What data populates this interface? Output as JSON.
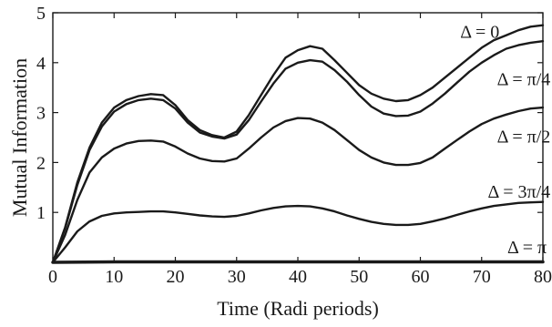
{
  "chart_data": {
    "type": "line",
    "title": "",
    "xlabel": "Time (Radi periods)",
    "ylabel": "Mutual Information",
    "xlim": [
      0,
      80
    ],
    "ylim": [
      0,
      5
    ],
    "xticks": [
      0,
      10,
      20,
      30,
      40,
      50,
      60,
      70,
      80
    ],
    "yticks": [
      1,
      2,
      3,
      4,
      5
    ],
    "grid": false,
    "legend": "none",
    "line_color": "#1a1a1a",
    "series": [
      {
        "name": "Δ = 0",
        "points": [
          [
            0,
            0
          ],
          [
            2,
            0.7
          ],
          [
            4,
            1.6
          ],
          [
            6,
            2.3
          ],
          [
            8,
            2.8
          ],
          [
            10,
            3.1
          ],
          [
            12,
            3.25
          ],
          [
            14,
            3.33
          ],
          [
            16,
            3.37
          ],
          [
            18,
            3.35
          ],
          [
            20,
            3.15
          ],
          [
            22,
            2.85
          ],
          [
            24,
            2.65
          ],
          [
            26,
            2.55
          ],
          [
            28,
            2.5
          ],
          [
            30,
            2.62
          ],
          [
            32,
            2.95
          ],
          [
            34,
            3.35
          ],
          [
            36,
            3.75
          ],
          [
            38,
            4.1
          ],
          [
            40,
            4.25
          ],
          [
            42,
            4.33
          ],
          [
            44,
            4.28
          ],
          [
            46,
            4.05
          ],
          [
            48,
            3.8
          ],
          [
            50,
            3.55
          ],
          [
            52,
            3.38
          ],
          [
            54,
            3.28
          ],
          [
            56,
            3.23
          ],
          [
            58,
            3.25
          ],
          [
            60,
            3.35
          ],
          [
            62,
            3.5
          ],
          [
            64,
            3.7
          ],
          [
            66,
            3.9
          ],
          [
            68,
            4.1
          ],
          [
            70,
            4.3
          ],
          [
            72,
            4.45
          ],
          [
            74,
            4.55
          ],
          [
            76,
            4.65
          ],
          [
            78,
            4.72
          ],
          [
            80,
            4.75
          ]
        ]
      },
      {
        "name": "Δ = π/4",
        "points": [
          [
            0,
            0
          ],
          [
            2,
            0.68
          ],
          [
            4,
            1.55
          ],
          [
            6,
            2.25
          ],
          [
            8,
            2.72
          ],
          [
            10,
            3.02
          ],
          [
            12,
            3.17
          ],
          [
            14,
            3.25
          ],
          [
            16,
            3.28
          ],
          [
            18,
            3.25
          ],
          [
            20,
            3.08
          ],
          [
            22,
            2.8
          ],
          [
            24,
            2.6
          ],
          [
            26,
            2.52
          ],
          [
            28,
            2.48
          ],
          [
            30,
            2.56
          ],
          [
            32,
            2.85
          ],
          [
            34,
            3.22
          ],
          [
            36,
            3.58
          ],
          [
            38,
            3.88
          ],
          [
            40,
            4.0
          ],
          [
            42,
            4.05
          ],
          [
            44,
            4.02
          ],
          [
            46,
            3.85
          ],
          [
            48,
            3.62
          ],
          [
            50,
            3.35
          ],
          [
            52,
            3.12
          ],
          [
            54,
            2.98
          ],
          [
            56,
            2.93
          ],
          [
            58,
            2.94
          ],
          [
            60,
            3.02
          ],
          [
            62,
            3.18
          ],
          [
            64,
            3.38
          ],
          [
            66,
            3.6
          ],
          [
            68,
            3.82
          ],
          [
            70,
            4.0
          ],
          [
            72,
            4.15
          ],
          [
            74,
            4.28
          ],
          [
            76,
            4.35
          ],
          [
            78,
            4.4
          ],
          [
            80,
            4.43
          ]
        ]
      },
      {
        "name": "Δ = π/2",
        "points": [
          [
            0,
            0
          ],
          [
            2,
            0.55
          ],
          [
            4,
            1.25
          ],
          [
            6,
            1.8
          ],
          [
            8,
            2.1
          ],
          [
            10,
            2.28
          ],
          [
            12,
            2.38
          ],
          [
            14,
            2.43
          ],
          [
            16,
            2.44
          ],
          [
            18,
            2.42
          ],
          [
            20,
            2.32
          ],
          [
            22,
            2.18
          ],
          [
            24,
            2.08
          ],
          [
            26,
            2.03
          ],
          [
            28,
            2.02
          ],
          [
            30,
            2.08
          ],
          [
            32,
            2.28
          ],
          [
            34,
            2.5
          ],
          [
            36,
            2.7
          ],
          [
            38,
            2.83
          ],
          [
            40,
            2.89
          ],
          [
            42,
            2.88
          ],
          [
            44,
            2.8
          ],
          [
            46,
            2.65
          ],
          [
            48,
            2.45
          ],
          [
            50,
            2.25
          ],
          [
            52,
            2.1
          ],
          [
            54,
            2.0
          ],
          [
            56,
            1.95
          ],
          [
            58,
            1.95
          ],
          [
            60,
            1.99
          ],
          [
            62,
            2.1
          ],
          [
            64,
            2.28
          ],
          [
            66,
            2.45
          ],
          [
            68,
            2.62
          ],
          [
            70,
            2.77
          ],
          [
            72,
            2.88
          ],
          [
            74,
            2.96
          ],
          [
            76,
            3.03
          ],
          [
            78,
            3.08
          ],
          [
            80,
            3.1
          ]
        ]
      },
      {
        "name": "Δ = 3π/4",
        "points": [
          [
            0,
            0
          ],
          [
            2,
            0.3
          ],
          [
            4,
            0.62
          ],
          [
            6,
            0.82
          ],
          [
            8,
            0.93
          ],
          [
            10,
            0.98
          ],
          [
            12,
            1.0
          ],
          [
            14,
            1.01
          ],
          [
            16,
            1.02
          ],
          [
            18,
            1.02
          ],
          [
            20,
            1.0
          ],
          [
            22,
            0.97
          ],
          [
            24,
            0.94
          ],
          [
            26,
            0.92
          ],
          [
            28,
            0.91
          ],
          [
            30,
            0.93
          ],
          [
            32,
            0.98
          ],
          [
            34,
            1.04
          ],
          [
            36,
            1.09
          ],
          [
            38,
            1.12
          ],
          [
            40,
            1.13
          ],
          [
            42,
            1.12
          ],
          [
            44,
            1.08
          ],
          [
            46,
            1.02
          ],
          [
            48,
            0.94
          ],
          [
            50,
            0.87
          ],
          [
            52,
            0.81
          ],
          [
            54,
            0.77
          ],
          [
            56,
            0.75
          ],
          [
            58,
            0.75
          ],
          [
            60,
            0.77
          ],
          [
            62,
            0.82
          ],
          [
            64,
            0.88
          ],
          [
            66,
            0.95
          ],
          [
            68,
            1.02
          ],
          [
            70,
            1.08
          ],
          [
            72,
            1.13
          ],
          [
            74,
            1.16
          ],
          [
            76,
            1.19
          ],
          [
            78,
            1.2
          ],
          [
            80,
            1.21
          ]
        ]
      },
      {
        "name": "Δ = π",
        "points": [
          [
            0,
            0
          ],
          [
            10,
            0.01
          ],
          [
            20,
            0.01
          ],
          [
            30,
            0.01
          ],
          [
            40,
            0.01
          ],
          [
            50,
            0.01
          ],
          [
            60,
            0.01
          ],
          [
            70,
            0.01
          ],
          [
            80,
            0.01
          ]
        ]
      }
    ],
    "annotations": [
      {
        "text": "Δ = 0",
        "x": 66.5,
        "y": 4.5
      },
      {
        "text": "Δ = π/4",
        "x": 72.5,
        "y": 3.55
      },
      {
        "text": "Δ = π/2",
        "x": 72.5,
        "y": 2.4
      },
      {
        "text": "Δ = 3π/4",
        "x": 71,
        "y": 1.3
      },
      {
        "text": "Δ = π",
        "x": 74.2,
        "y": 0.18
      }
    ]
  }
}
